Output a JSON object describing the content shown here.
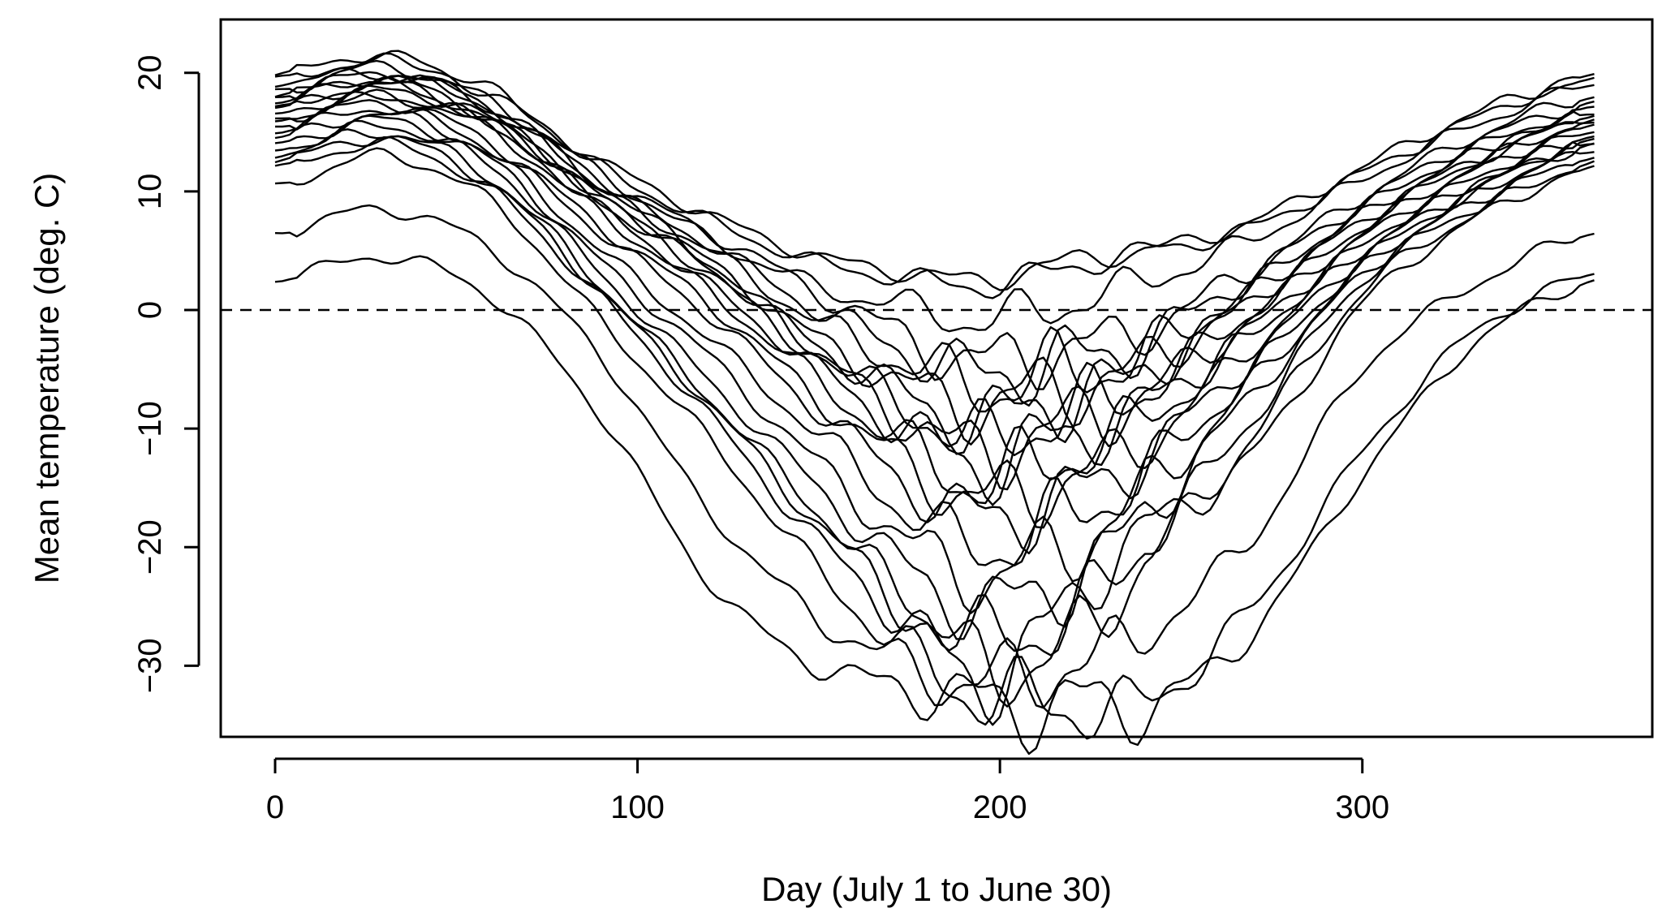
{
  "chart_data": {
    "type": "line",
    "title": "",
    "xlabel": "Day (July 1 to June 30)",
    "ylabel": "Mean temperature (deg. C)",
    "xlim": [
      -15,
      380
    ],
    "ylim": [
      -36,
      24.5
    ],
    "x_ticks": [
      0,
      100,
      200,
      300
    ],
    "y_ticks": [
      20,
      10,
      0,
      -10,
      -20,
      -30
    ],
    "x_tick_labels": [
      "0",
      "100",
      "200",
      "300"
    ],
    "y_tick_labels": [
      "20",
      "10",
      "0",
      "−10",
      "−20",
      "−30"
    ],
    "reference_line": {
      "y": 0,
      "style": "dashed"
    },
    "grid": false,
    "legend": "none",
    "series_color": "#000000",
    "knot_days": [
      0,
      30,
      60,
      90,
      120,
      150,
      180,
      195,
      210,
      225,
      240,
      270,
      300,
      330,
      364
    ],
    "series": [
      {
        "values": [
          19.8,
          21.5,
          18.0,
          12.5,
          8.0,
          4.5,
          3.0,
          2.5,
          3.5,
          4.5,
          5.0,
          7.5,
          12.0,
          16.5,
          19.5
        ]
      },
      {
        "values": [
          19.5,
          21.0,
          18.5,
          12.0,
          7.5,
          4.0,
          2.5,
          2.0,
          3.0,
          4.0,
          5.0,
          7.0,
          11.5,
          16.0,
          19.8
        ]
      },
      {
        "values": [
          18.5,
          20.5,
          17.5,
          11.5,
          6.0,
          2.0,
          0.0,
          -1.0,
          0.0,
          1.0,
          2.5,
          6.0,
          11.0,
          15.5,
          19.0
        ]
      },
      {
        "values": [
          18.0,
          20.0,
          17.0,
          11.0,
          6.5,
          1.5,
          -3.0,
          -4.5,
          -3.5,
          -3.0,
          -1.5,
          3.5,
          9.5,
          14.5,
          18.0
        ]
      },
      {
        "values": [
          17.5,
          19.5,
          17.0,
          10.5,
          5.5,
          0.0,
          -4.0,
          -5.5,
          -4.5,
          -4.0,
          -2.5,
          3.0,
          9.0,
          14.0,
          17.5
        ]
      },
      {
        "values": [
          17.0,
          19.0,
          16.0,
          10.0,
          5.0,
          -1.0,
          -5.0,
          -6.5,
          -5.5,
          -5.0,
          -3.5,
          2.0,
          8.5,
          13.5,
          17.0
        ]
      },
      {
        "values": [
          16.5,
          18.5,
          16.0,
          9.5,
          4.0,
          -2.5,
          -7.0,
          -8.0,
          -7.0,
          -6.0,
          -4.5,
          1.5,
          8.0,
          13.0,
          16.5
        ]
      },
      {
        "values": [
          16.0,
          18.0,
          15.5,
          9.0,
          3.5,
          -3.0,
          -8.0,
          -9.5,
          -8.0,
          -7.0,
          -5.0,
          1.0,
          7.5,
          12.5,
          16.0
        ]
      },
      {
        "values": [
          19.0,
          20.0,
          17.0,
          10.5,
          4.0,
          -3.5,
          -9.0,
          -11.0,
          -9.5,
          -8.0,
          -6.5,
          0.0,
          7.0,
          12.5,
          16.5
        ]
      },
      {
        "values": [
          18.0,
          19.5,
          16.0,
          9.5,
          3.0,
          -4.0,
          -10.0,
          -12.0,
          -10.5,
          -9.0,
          -7.0,
          -0.5,
          6.5,
          12.0,
          16.0
        ]
      },
      {
        "values": [
          17.0,
          19.0,
          15.5,
          8.5,
          2.0,
          -5.0,
          -11.0,
          -13.0,
          -11.5,
          -10.0,
          -8.0,
          -1.5,
          6.0,
          11.5,
          15.5
        ]
      },
      {
        "values": [
          16.0,
          18.0,
          15.0,
          8.0,
          1.5,
          -6.0,
          -12.5,
          -14.5,
          -13.0,
          -11.5,
          -9.0,
          -2.0,
          5.5,
          11.0,
          15.0
        ]
      },
      {
        "values": [
          15.5,
          17.5,
          14.0,
          7.0,
          0.5,
          -7.5,
          -14.0,
          -16.0,
          -15.0,
          -13.5,
          -11.0,
          -3.0,
          5.0,
          10.5,
          14.5
        ]
      },
      {
        "values": [
          15.0,
          17.0,
          13.5,
          6.5,
          -0.5,
          -8.5,
          -15.5,
          -17.5,
          -16.5,
          -15.0,
          -12.0,
          -4.0,
          4.5,
          10.0,
          14.0
        ]
      },
      {
        "values": [
          14.5,
          16.5,
          13.0,
          5.0,
          -2.5,
          -10.5,
          -18.0,
          -20.0,
          -18.5,
          -16.5,
          -13.5,
          -5.0,
          4.0,
          10.0,
          14.5
        ]
      },
      {
        "values": [
          14.0,
          16.0,
          12.5,
          4.0,
          -4.0,
          -13.0,
          -20.5,
          -22.5,
          -21.0,
          -19.0,
          -15.0,
          -6.0,
          3.5,
          9.5,
          14.0
        ]
      },
      {
        "values": [
          13.5,
          15.5,
          12.0,
          3.0,
          -6.0,
          -15.0,
          -23.0,
          -25.0,
          -24.0,
          -21.5,
          -17.0,
          -7.0,
          3.0,
          9.0,
          13.5
        ]
      },
      {
        "values": [
          13.0,
          15.0,
          11.0,
          2.0,
          -7.5,
          -17.0,
          -25.5,
          -27.5,
          -27.0,
          -24.5,
          -19.5,
          -9.0,
          2.5,
          8.5,
          13.0
        ]
      },
      {
        "values": [
          12.5,
          14.5,
          10.5,
          1.5,
          -8.0,
          -18.0,
          -26.5,
          -29.5,
          -30.0,
          -26.5,
          -21.0,
          -10.5,
          1.5,
          8.0,
          12.5
        ]
      },
      {
        "values": [
          12.0,
          14.0,
          10.0,
          1.0,
          -9.0,
          -19.5,
          -27.5,
          -31.5,
          -28.0,
          -22.5,
          -18.5,
          -12.0,
          0.5,
          7.5,
          12.0
        ]
      },
      {
        "values": [
          10.5,
          13.0,
          9.0,
          -1.0,
          -11.0,
          -22.0,
          -30.0,
          -32.5,
          -33.0,
          -33.5,
          -33.0,
          -25.0,
          -12.0,
          -2.0,
          3.0
        ]
      },
      {
        "values": [
          6.5,
          8.5,
          5.0,
          -4.0,
          -17.0,
          -26.0,
          -30.5,
          -31.5,
          -30.5,
          -29.5,
          -27.0,
          -19.0,
          -5.0,
          2.0,
          6.5
        ]
      },
      {
        "values": [
          2.5,
          4.5,
          1.0,
          -9.0,
          -23.0,
          -30.0,
          -32.0,
          -33.0,
          -33.5,
          -33.0,
          -33.5,
          -27.0,
          -14.0,
          -3.0,
          2.5
        ]
      }
    ]
  }
}
